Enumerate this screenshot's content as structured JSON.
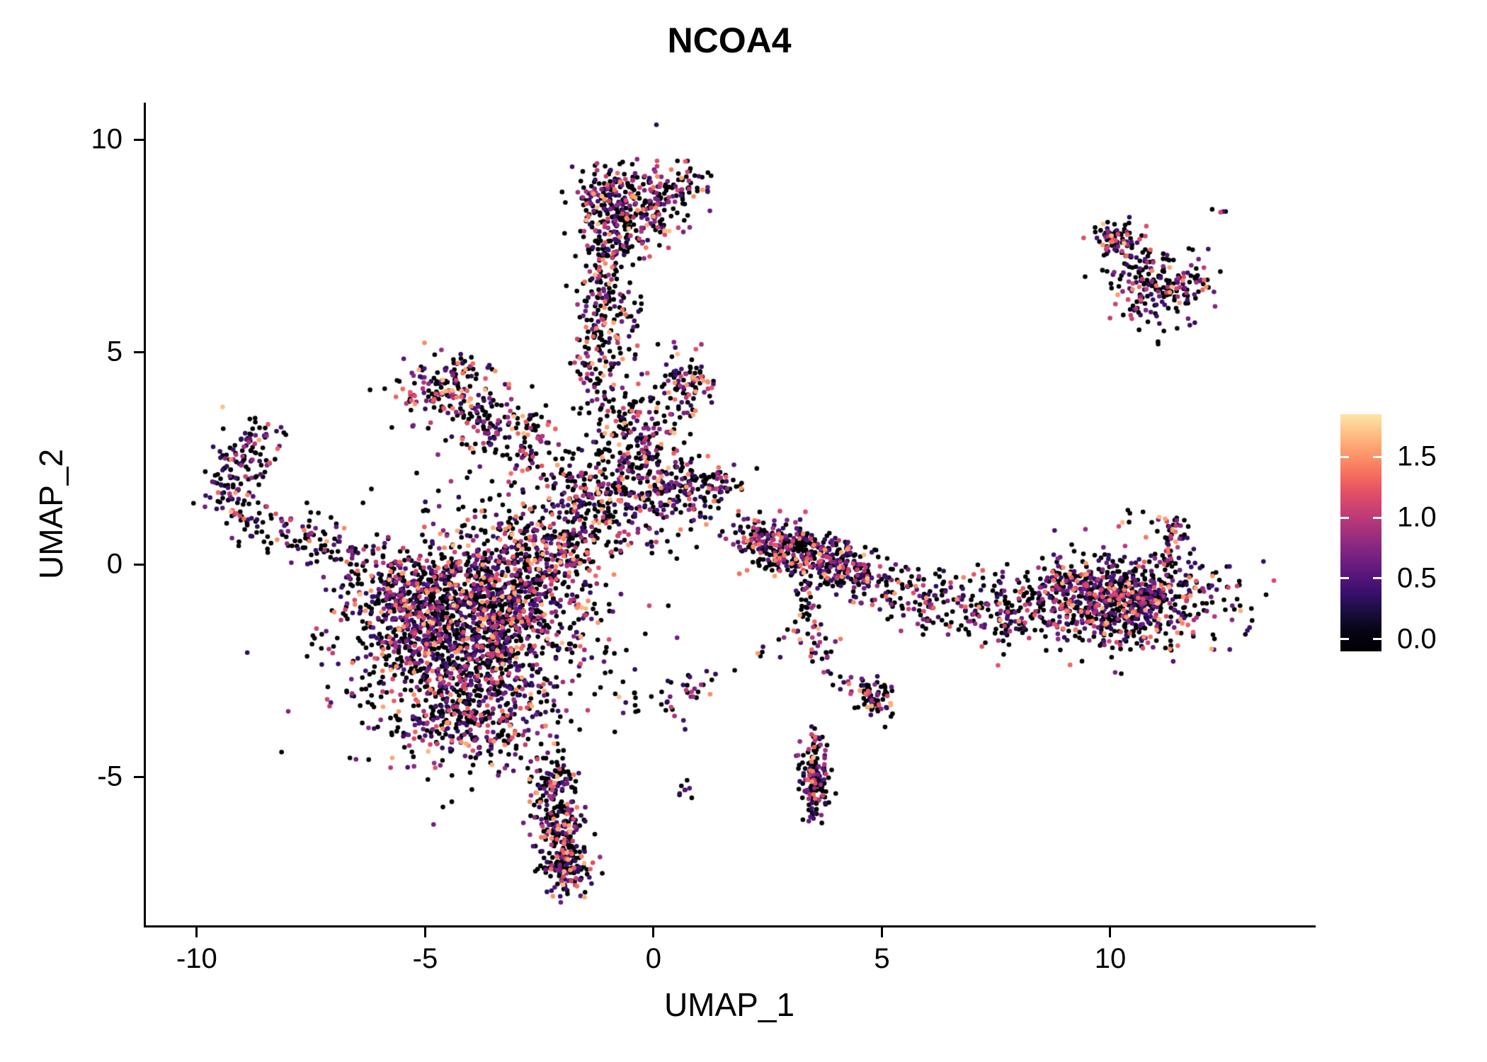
{
  "chart_data": {
    "type": "scatter",
    "title": "NCOA4",
    "xlabel": "UMAP_1",
    "ylabel": "UMAP_2",
    "xlim": [
      -11.13,
      14.45
    ],
    "ylim": [
      -8.5,
      10.87
    ],
    "grid": false,
    "legend_position": "right",
    "x_ticks": [
      {
        "value": -10,
        "label": "-10"
      },
      {
        "value": -5,
        "label": "-5"
      },
      {
        "value": 0,
        "label": "0"
      },
      {
        "value": 5,
        "label": "5"
      },
      {
        "value": 10,
        "label": "10"
      }
    ],
    "y_ticks": [
      {
        "value": -5,
        "label": "-5"
      },
      {
        "value": 0,
        "label": "0"
      },
      {
        "value": 5,
        "label": "5"
      },
      {
        "value": 10,
        "label": "10"
      }
    ],
    "colorbar": {
      "ticks": [
        {
          "value": 0.0,
          "label": "0.0"
        },
        {
          "value": 0.5,
          "label": "0.5"
        },
        {
          "value": 1.0,
          "label": "1.0"
        },
        {
          "value": 1.5,
          "label": "1.5"
        }
      ],
      "bar_min": -0.1,
      "bar_max": 1.85,
      "color_domain_max": 1.95,
      "colormap": "magma",
      "stops": [
        "#000004",
        "#140e36",
        "#3b0f70",
        "#641a80",
        "#8c2981",
        "#b73779",
        "#de4968",
        "#f7705c",
        "#fe9f6d",
        "#fecf92",
        "#fcfdbf"
      ]
    },
    "expression": {
      "zero_fraction": 0.52,
      "min": 0.3,
      "max": 1.7,
      "skew": 1.7
    },
    "point": {
      "radius_px": 3.3,
      "seed": 42
    },
    "clusters": [
      {
        "type": "blob",
        "cx": -0.85,
        "cy": 8.55,
        "sx": 0.5,
        "sy": 0.42,
        "n": 230
      },
      {
        "type": "blob",
        "cx": 0.35,
        "cy": 8.95,
        "sx": 0.38,
        "sy": 0.3,
        "n": 70
      },
      {
        "type": "blob",
        "cx": -0.2,
        "cy": 8.1,
        "sx": 0.5,
        "sy": 0.4,
        "n": 80
      },
      {
        "type": "path",
        "pts": [
          [
            -0.75,
            7.8
          ],
          [
            -1.1,
            6.7
          ],
          [
            -1.0,
            5.5
          ],
          [
            -1.3,
            4.4
          ]
        ],
        "spread": 0.34,
        "n": 270
      },
      {
        "type": "path",
        "pts": [
          [
            -1.0,
            4.2
          ],
          [
            -0.5,
            3.1
          ],
          [
            -0.35,
            2.2
          ]
        ],
        "spread": 0.42,
        "n": 130
      },
      {
        "type": "blob",
        "cx": -4.45,
        "cy": 4.1,
        "sx": 0.5,
        "sy": 0.45,
        "n": 170
      },
      {
        "type": "path",
        "pts": [
          [
            -4.0,
            3.7
          ],
          [
            -3.2,
            3.25
          ],
          [
            -2.55,
            2.85
          ]
        ],
        "spread": 0.3,
        "n": 90
      },
      {
        "type": "blob",
        "cx": -3.2,
        "cy": 2.8,
        "sx": 0.75,
        "sy": 0.5,
        "n": 55
      },
      {
        "type": "path",
        "pts": [
          [
            -9.35,
            1.55
          ],
          [
            -9.05,
            2.4
          ],
          [
            -8.5,
            3.15
          ]
        ],
        "spread": 0.27,
        "n": 130
      },
      {
        "type": "path",
        "pts": [
          [
            -9.3,
            1.3
          ],
          [
            -8.4,
            0.85
          ],
          [
            -7.3,
            0.45
          ],
          [
            -6.4,
            -0.05
          ]
        ],
        "spread": 0.3,
        "n": 140
      },
      {
        "type": "blob",
        "cx": -4.1,
        "cy": -1.7,
        "sx": 1.3,
        "sy": 1.25,
        "n": 1500
      },
      {
        "type": "blob",
        "cx": -3.0,
        "cy": -0.4,
        "sx": 0.85,
        "sy": 0.8,
        "n": 380
      },
      {
        "type": "blob",
        "cx": -5.3,
        "cy": -0.8,
        "sx": 0.7,
        "sy": 0.6,
        "n": 260
      },
      {
        "type": "blob",
        "cx": -4.1,
        "cy": -3.7,
        "sx": 0.85,
        "sy": 0.55,
        "n": 220
      },
      {
        "type": "path",
        "pts": [
          [
            -2.7,
            0.2
          ],
          [
            -1.9,
            0.9
          ],
          [
            -1.2,
            1.5
          ]
        ],
        "spread": 0.5,
        "n": 210
      },
      {
        "type": "blob",
        "cx": -0.35,
        "cy": 1.6,
        "sx": 0.8,
        "sy": 0.65,
        "n": 230
      },
      {
        "type": "blob",
        "cx": -0.5,
        "cy": 3.1,
        "sx": 0.6,
        "sy": 0.55,
        "n": 70
      },
      {
        "type": "blob",
        "cx": -2.2,
        "cy": 2.2,
        "sx": 0.7,
        "sy": 0.6,
        "n": 60
      },
      {
        "type": "blob",
        "cx": 0.75,
        "cy": 4.25,
        "sx": 0.3,
        "sy": 0.42,
        "n": 95
      },
      {
        "type": "blob",
        "cx": 0.9,
        "cy": 1.8,
        "sx": 0.55,
        "sy": 0.28,
        "n": 120
      },
      {
        "type": "path",
        "pts": [
          [
            -2.35,
            -4.6
          ],
          [
            -2.15,
            -5.6
          ],
          [
            -2.0,
            -6.4
          ],
          [
            -1.9,
            -7.1
          ]
        ],
        "spread": 0.3,
        "n": 270
      },
      {
        "type": "blob",
        "cx": -1.9,
        "cy": -7.2,
        "sx": 0.3,
        "sy": 0.3,
        "n": 90
      },
      {
        "type": "path",
        "pts": [
          [
            -0.6,
            -3.05
          ],
          [
            0.3,
            -3.3
          ],
          [
            1.25,
            -2.6
          ]
        ],
        "spread": 0.22,
        "n": 45
      },
      {
        "type": "blob",
        "cx": 0.72,
        "cy": -5.25,
        "sx": 0.12,
        "sy": 0.12,
        "n": 8
      },
      {
        "type": "path",
        "pts": [
          [
            1.8,
            0.7
          ],
          [
            2.6,
            0.45
          ],
          [
            3.4,
            0.2
          ],
          [
            4.2,
            -0.1
          ],
          [
            5.1,
            -0.55
          ]
        ],
        "spread": 0.3,
        "n": 300
      },
      {
        "type": "blob",
        "cx": 2.9,
        "cy": 0.4,
        "sx": 0.45,
        "sy": 0.28,
        "n": 110
      },
      {
        "type": "blob",
        "cx": 4.0,
        "cy": -0.05,
        "sx": 0.4,
        "sy": 0.3,
        "n": 110
      },
      {
        "type": "path",
        "pts": [
          [
            5.2,
            -0.6
          ],
          [
            6.3,
            -0.9
          ],
          [
            7.3,
            -1.05
          ],
          [
            8.3,
            -1.2
          ]
        ],
        "spread": 0.38,
        "n": 240
      },
      {
        "type": "blob",
        "cx": 10.2,
        "cy": -0.85,
        "sx": 1.05,
        "sy": 0.55,
        "n": 750
      },
      {
        "type": "blob",
        "cx": 9.2,
        "cy": -0.5,
        "sx": 0.6,
        "sy": 0.35,
        "n": 100
      },
      {
        "type": "path",
        "pts": [
          [
            11.15,
            -0.2
          ],
          [
            11.35,
            0.45
          ],
          [
            11.3,
            1.0
          ]
        ],
        "spread": 0.18,
        "n": 55
      },
      {
        "type": "blob",
        "cx": 10.4,
        "cy": 1.15,
        "sx": 0.15,
        "sy": 0.12,
        "n": 6
      },
      {
        "type": "path",
        "pts": [
          [
            3.3,
            -0.6
          ],
          [
            3.5,
            -1.5
          ],
          [
            3.6,
            -2.4
          ]
        ],
        "spread": 0.18,
        "n": 55
      },
      {
        "type": "blob",
        "cx": 2.75,
        "cy": -2.1,
        "sx": 0.3,
        "sy": 0.25,
        "n": 9
      },
      {
        "type": "path",
        "pts": [
          [
            3.8,
            -2.55
          ],
          [
            4.4,
            -2.85
          ],
          [
            4.9,
            -3.1
          ]
        ],
        "spread": 0.16,
        "n": 35
      },
      {
        "type": "blob",
        "cx": 4.95,
        "cy": -3.2,
        "sx": 0.2,
        "sy": 0.24,
        "n": 45
      },
      {
        "type": "blob",
        "cx": 3.55,
        "cy": -5.05,
        "sx": 0.2,
        "sy": 0.48,
        "n": 140
      },
      {
        "type": "path",
        "pts": [
          [
            3.55,
            -4.35
          ],
          [
            3.5,
            -3.85
          ]
        ],
        "spread": 0.1,
        "n": 12
      },
      {
        "type": "blob",
        "cx": 11.1,
        "cy": 6.6,
        "sx": 0.6,
        "sy": 0.42,
        "n": 190
      },
      {
        "type": "path",
        "pts": [
          [
            10.7,
            7.05
          ],
          [
            10.25,
            7.5
          ],
          [
            9.95,
            7.8
          ]
        ],
        "spread": 0.2,
        "n": 60
      },
      {
        "type": "blob",
        "cx": 10.15,
        "cy": 7.75,
        "sx": 0.28,
        "sy": 0.16,
        "n": 40
      },
      {
        "type": "blob",
        "cx": 12.45,
        "cy": 8.3,
        "sx": 0.1,
        "sy": 0.08,
        "n": 4
      },
      {
        "type": "blob",
        "cx": 12.3,
        "cy": 6.45,
        "sx": 0.08,
        "sy": 0.08,
        "n": 2
      },
      {
        "type": "blob",
        "cx": -6.9,
        "cy": 1.0,
        "sx": 0.1,
        "sy": 0.1,
        "n": 2
      }
    ]
  }
}
